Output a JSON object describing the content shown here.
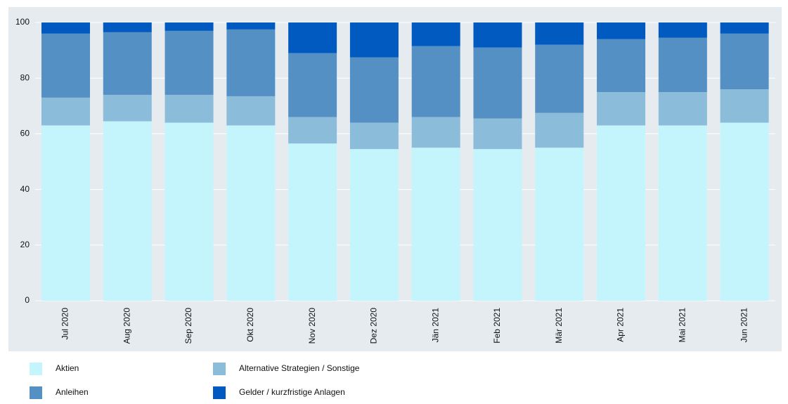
{
  "chart_data": {
    "type": "stacked-bar",
    "categories": [
      "Jul 2020",
      "Aug 2020",
      "Sep 2020",
      "Okt 2020",
      "Nov 2020",
      "Dez 2020",
      "Jän 2021",
      "Feb 2021",
      "Mär 2021",
      "Apr 2021",
      "Mai 2021",
      "Jun 2021"
    ],
    "series": [
      {
        "name": "Aktien",
        "color": "#c5f5fc",
        "values": [
          63,
          64.5,
          64,
          63,
          56.5,
          54.5,
          55,
          54.5,
          55,
          63,
          63,
          64
        ]
      },
      {
        "name": "Alternative Strategien / Sonstige",
        "color": "#8bbcd9",
        "values": [
          10,
          9.5,
          10,
          10.5,
          9.5,
          9.5,
          11,
          11,
          12.5,
          12,
          12,
          12
        ]
      },
      {
        "name": "Anleihen",
        "color": "#5590c5",
        "values": [
          23,
          22.5,
          23,
          24,
          23,
          23.5,
          25.5,
          25.5,
          24.5,
          19,
          19.5,
          20
        ]
      },
      {
        "name": "Gelder / kurzfristige Anlagen",
        "color": "#005ac0",
        "values": [
          4,
          3.5,
          3,
          2.5,
          11,
          12.5,
          8.5,
          9,
          8,
          6,
          5.5,
          4
        ]
      }
    ],
    "ylim": [
      0,
      100
    ],
    "yticks": [
      0,
      20,
      40,
      60,
      80,
      100
    ],
    "grid": true
  }
}
